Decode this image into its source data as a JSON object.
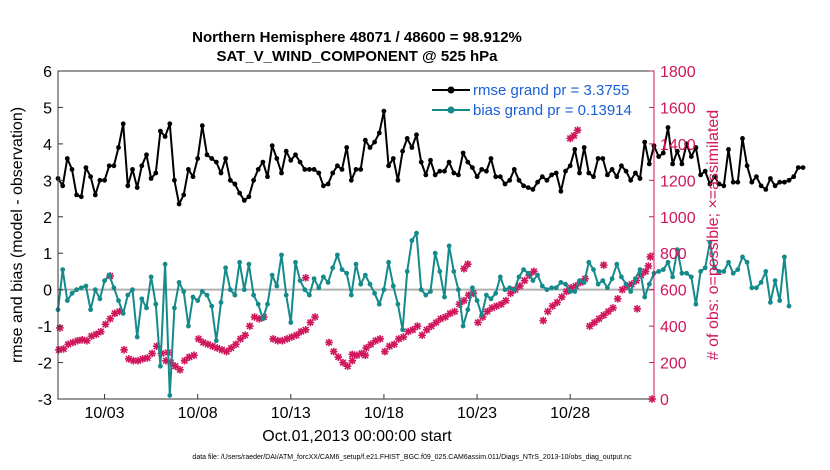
{
  "chart_data": {
    "type": "line",
    "title": "Northern Hemisphere 48071 / 48600 = 98.912%",
    "subtitle": "SAT_V_WIND_COMPONENT @ 525 hPa",
    "ylabel_left": "rmse and bias (model - observation)",
    "ylabel_right": "# of obs: o=possible; ×=assimilated",
    "xlabel": "Oct.01,2013 00:00:00 start",
    "footnote": "data file: /Users/raeder/DAI/ATM_forcXX/CAM6_setup/f.e21.FHIST_BGC.f09_025.CAM6assim.011/Diags_NTrS_2013-10/obs_diag_output.nc",
    "ylim_left": [
      -3,
      6
    ],
    "ylim_right": [
      0,
      1800
    ],
    "yticks_left": [
      -3,
      -2,
      -1,
      0,
      1,
      2,
      3,
      4,
      5,
      6
    ],
    "yticks_right": [
      0,
      200,
      400,
      600,
      800,
      1000,
      1200,
      1400,
      1600,
      1800
    ],
    "xlim": [
      0.5,
      32.5
    ],
    "xticks": [
      {
        "x": 3,
        "label": "10/03"
      },
      {
        "x": 8,
        "label": "10/08"
      },
      {
        "x": 13,
        "label": "10/13"
      },
      {
        "x": 18,
        "label": "10/18"
      },
      {
        "x": 23,
        "label": "10/23"
      },
      {
        "x": 28,
        "label": "10/28"
      }
    ],
    "legend": [
      {
        "label": "rmse grand pr = 3.3755",
        "color": "#000000"
      },
      {
        "label": "bias grand pr = 0.13914",
        "color": "#148a8a"
      }
    ],
    "colors": {
      "rmse": "#000000",
      "bias": "#148a8a",
      "obs": "#d0165c",
      "zero_line": "#b0b0b0"
    },
    "x0": 0.5,
    "dx": 0.25,
    "rmse": [
      3.05,
      2.85,
      3.6,
      3.3,
      2.6,
      2.55,
      3.35,
      3.1,
      2.6,
      3.0,
      3.0,
      3.4,
      3.4,
      3.9,
      4.55,
      2.85,
      3.3,
      2.8,
      3.4,
      3.7,
      3.05,
      3.2,
      4.35,
      4.2,
      4.55,
      3.0,
      2.35,
      2.6,
      3.3,
      3.1,
      3.6,
      4.5,
      3.7,
      3.6,
      3.5,
      3.2,
      3.6,
      3.0,
      2.9,
      2.65,
      2.45,
      2.55,
      3.0,
      3.3,
      3.5,
      3.1,
      3.95,
      3.6,
      3.2,
      3.8,
      3.55,
      3.7,
      3.5,
      3.3,
      3.3,
      3.3,
      3.2,
      2.85,
      2.9,
      3.2,
      3.4,
      3.3,
      3.9,
      3.0,
      3.3,
      3.3,
      4.1,
      3.9,
      4.05,
      4.3,
      4.9,
      3.4,
      3.6,
      3.0,
      3.8,
      4.15,
      3.9,
      4.25,
      3.5,
      3.15,
      3.55,
      3.15,
      3.25,
      3.25,
      3.5,
      3.2,
      3.15,
      3.75,
      3.5,
      3.35,
      3.1,
      3.3,
      3.25,
      3.6,
      3.1,
      3.1,
      2.9,
      3.0,
      3.3,
      3.0,
      2.85,
      2.8,
      2.75,
      2.95,
      3.1,
      3.0,
      3.15,
      3.2,
      2.7,
      3.25,
      3.4,
      3.85,
      3.2,
      3.9,
      3.2,
      3.1,
      3.6,
      3.6,
      3.15,
      3.3,
      3.1,
      3.4,
      3.25,
      3.0,
      3.2,
      3.05,
      4.05,
      3.45,
      3.95,
      3.65,
      3.75,
      4.45,
      3.45,
      3.8,
      3.45,
      4.0,
      3.65,
      3.9,
      3.15,
      3.25,
      2.9,
      3.1,
      2.9,
      2.85,
      3.85,
      2.95,
      2.95,
      4.15,
      3.4,
      2.95,
      3.1,
      2.85,
      2.75,
      3.05,
      2.85,
      2.95,
      2.95,
      3.0,
      3.1,
      3.35,
      3.35
    ],
    "bias": [
      -0.55,
      0.55,
      -0.3,
      -0.1,
      0.0,
      0.05,
      0.1,
      -0.55,
      0.0,
      -0.25,
      0.25,
      0.4,
      0.05,
      -0.3,
      -0.65,
      -0.15,
      0.0,
      -1.3,
      -0.25,
      -0.5,
      0.35,
      -0.4,
      -2.1,
      0.7,
      -2.9,
      -0.5,
      0.2,
      -0.05,
      -1.0,
      -0.2,
      -0.3,
      -0.05,
      -0.15,
      -0.45,
      -1.4,
      -0.35,
      0.6,
      0.0,
      -0.15,
      0.75,
      0.0,
      0.7,
      -0.15,
      -0.4,
      -0.8,
      -0.4,
      0.4,
      0.1,
      0.95,
      -0.15,
      -0.9,
      0.75,
      0.25,
      0.0,
      -0.15,
      0.3,
      0.05,
      0.35,
      0.2,
      0.6,
      0.95,
      0.55,
      0.45,
      -0.15,
      0.7,
      0.15,
      0.4,
      0.15,
      -0.1,
      -0.4,
      0.0,
      0.75,
      0.1,
      -0.4,
      -1.1,
      0.5,
      1.35,
      1.55,
      0.0,
      -0.15,
      -0.05,
      1.0,
      0.5,
      -0.2,
      1.2,
      0.5,
      0.0,
      -1.0,
      -0.55,
      0.05,
      -0.3,
      -0.7,
      -0.15,
      -0.25,
      -0.1,
      0.35,
      0.0,
      0.05,
      0.0,
      0.35,
      0.55,
      0.45,
      0.25,
      0.4,
      0.1,
      0.0,
      0.05,
      0.05,
      0.2,
      0.15,
      -0.05,
      -0.05,
      0.25,
      0.2,
      0.75,
      0.55,
      0.15,
      0.25,
      0.05,
      0.3,
      0.7,
      0.35,
      0.15,
      -0.05,
      0.3,
      0.55,
      -0.2,
      0.15,
      0.45,
      0.5,
      0.55,
      0.75,
      0.35,
      1.1,
      0.45,
      0.45,
      0.35,
      -0.4,
      0.5,
      0.6,
      1.3,
      0.6,
      0.5,
      0.5,
      0.75,
      0.45,
      0.55,
      0.9,
      0.75,
      0.05,
      0.05,
      0.2,
      0.5,
      -0.35,
      0.25,
      -0.3,
      0.9,
      -0.45
    ],
    "obs_assimilated": [
      [
        0.55,
        270
      ],
      [
        0.8,
        275
      ],
      [
        1.05,
        300
      ],
      [
        1.3,
        310
      ],
      [
        1.55,
        320
      ],
      [
        1.8,
        325
      ],
      [
        2.05,
        320
      ],
      [
        2.3,
        345
      ],
      [
        2.55,
        355
      ],
      [
        2.8,
        370
      ],
      [
        3.05,
        410
      ],
      [
        3.3,
        440
      ],
      [
        3.55,
        470
      ],
      [
        3.8,
        480
      ],
      [
        4.05,
        270
      ],
      [
        4.3,
        220
      ],
      [
        4.55,
        210
      ],
      [
        4.8,
        210
      ],
      [
        5.05,
        220
      ],
      [
        5.3,
        225
      ],
      [
        5.55,
        250
      ],
      [
        5.8,
        290
      ],
      [
        6.05,
        250
      ],
      [
        6.3,
        210
      ],
      [
        6.55,
        200
      ],
      [
        6.8,
        180
      ],
      [
        7.05,
        160
      ],
      [
        7.3,
        210
      ],
      [
        7.55,
        230
      ],
      [
        7.8,
        240
      ],
      [
        8.05,
        330
      ],
      [
        8.3,
        310
      ],
      [
        8.55,
        300
      ],
      [
        8.8,
        290
      ],
      [
        9.05,
        280
      ],
      [
        9.3,
        270
      ],
      [
        9.55,
        260
      ],
      [
        9.8,
        280
      ],
      [
        10.05,
        300
      ],
      [
        10.3,
        330
      ],
      [
        10.55,
        350
      ],
      [
        10.8,
        400
      ],
      [
        11.05,
        450
      ],
      [
        11.3,
        440
      ],
      [
        11.55,
        450
      ],
      [
        12.05,
        330
      ],
      [
        12.3,
        320
      ],
      [
        12.55,
        320
      ],
      [
        12.8,
        330
      ],
      [
        13.05,
        340
      ],
      [
        13.3,
        350
      ],
      [
        13.55,
        370
      ],
      [
        13.8,
        380
      ],
      [
        14.05,
        420
      ],
      [
        14.3,
        450
      ],
      [
        15.05,
        310
      ],
      [
        15.3,
        260
      ],
      [
        15.55,
        230
      ],
      [
        15.8,
        200
      ],
      [
        16.05,
        180
      ],
      [
        16.3,
        210
      ],
      [
        16.55,
        240
      ],
      [
        16.8,
        250
      ],
      [
        17.05,
        280
      ],
      [
        17.3,
        300
      ],
      [
        17.55,
        320
      ],
      [
        17.8,
        330
      ],
      [
        18.05,
        260
      ],
      [
        18.3,
        290
      ],
      [
        18.55,
        300
      ],
      [
        18.8,
        330
      ],
      [
        19.05,
        340
      ],
      [
        19.3,
        370
      ],
      [
        19.55,
        380
      ],
      [
        19.8,
        400
      ],
      [
        20.05,
        350
      ],
      [
        20.3,
        380
      ],
      [
        20.55,
        400
      ],
      [
        20.8,
        420
      ],
      [
        21.05,
        440
      ],
      [
        21.3,
        450
      ],
      [
        21.55,
        470
      ],
      [
        21.8,
        480
      ],
      [
        22.05,
        520
      ],
      [
        22.3,
        540
      ],
      [
        22.55,
        570
      ],
      [
        22.8,
        580
      ],
      [
        23.05,
        420
      ],
      [
        23.3,
        450
      ],
      [
        23.55,
        480
      ],
      [
        23.8,
        500
      ],
      [
        24.05,
        510
      ],
      [
        24.3,
        520
      ],
      [
        24.55,
        540
      ],
      [
        24.8,
        580
      ],
      [
        25.05,
        600
      ],
      [
        25.3,
        620
      ],
      [
        25.55,
        650
      ],
      [
        25.8,
        680
      ],
      [
        26.05,
        700
      ],
      [
        26.55,
        430
      ],
      [
        26.8,
        480
      ],
      [
        27.05,
        510
      ],
      [
        27.3,
        530
      ],
      [
        27.55,
        560
      ],
      [
        27.8,
        590
      ],
      [
        28.05,
        610
      ],
      [
        28.3,
        620
      ],
      [
        28.55,
        640
      ],
      [
        28.8,
        660
      ],
      [
        29.05,
        400
      ],
      [
        29.3,
        420
      ],
      [
        29.55,
        440
      ],
      [
        29.8,
        460
      ],
      [
        30.05,
        480
      ],
      [
        30.3,
        500
      ],
      [
        30.55,
        550
      ],
      [
        30.8,
        600
      ],
      [
        31.05,
        620
      ],
      [
        31.3,
        630
      ],
      [
        31.55,
        650
      ],
      [
        31.8,
        680
      ],
      [
        32.05,
        700
      ],
      [
        32.3,
        780
      ]
    ],
    "obs_assimilated_outliers": [
      [
        0.6,
        390
      ],
      [
        3.3,
        675
      ],
      [
        6.4,
        255
      ],
      [
        13.8,
        665
      ],
      [
        16.3,
        245
      ],
      [
        17.0,
        240
      ],
      [
        22.3,
        715
      ],
      [
        22.5,
        740
      ],
      [
        28.0,
        1430
      ],
      [
        28.2,
        1445
      ],
      [
        28.4,
        1475
      ],
      [
        29.8,
        735
      ],
      [
        31.6,
        495
      ],
      [
        32.2,
        730
      ],
      [
        32.4,
        0
      ]
    ]
  }
}
